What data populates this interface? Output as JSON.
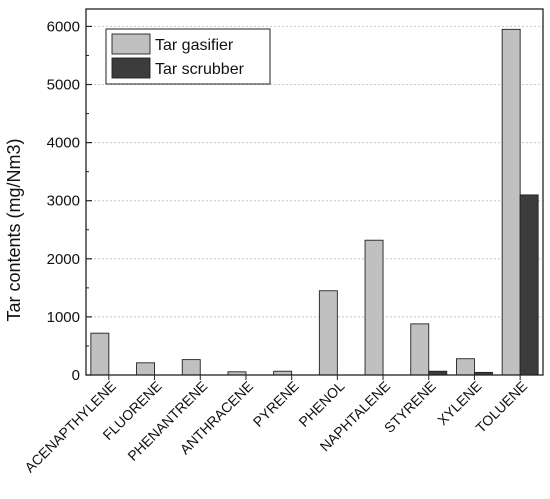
{
  "chart_data": {
    "type": "bar",
    "title": "",
    "xlabel": "",
    "ylabel": "Tar contents (mg/Nm3)",
    "ylim": [
      0,
      6300
    ],
    "yticks": [
      0,
      1000,
      2000,
      3000,
      4000,
      5000,
      6000
    ],
    "grid": "horizontal dotted",
    "legend_position": "top-left",
    "categories": [
      "ACENAPTHYLENE",
      "FLUORENE",
      "PHENANTRENE",
      "ANTHRACENE",
      "PYRENE",
      "PHENOL",
      "NAPHTALENE",
      "STYRENE",
      "XYLENE",
      "TOLUENE"
    ],
    "series": [
      {
        "name": "Tar gasifier",
        "color": "#c0c0c0",
        "values": [
          720,
          210,
          265,
          55,
          65,
          1450,
          2320,
          880,
          280,
          5950
        ]
      },
      {
        "name": "Tar scrubber",
        "color": "#3c3c3c",
        "values": [
          0,
          0,
          0,
          0,
          0,
          0,
          0,
          65,
          45,
          3100
        ]
      }
    ]
  }
}
